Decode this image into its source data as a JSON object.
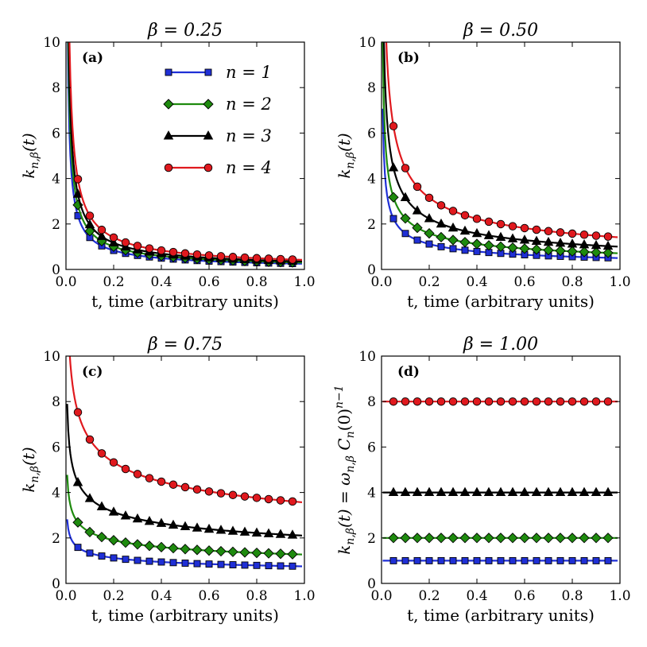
{
  "chart_data": [
    {
      "type": "line",
      "panel_label": "(a)",
      "title": "β = 0.25",
      "xlabel": "t,  time (arbitrary units)",
      "ylabel": "k_{n,β}(t)",
      "ylabel_parts": {
        "base": "k",
        "sub": "n,β",
        "arg": "(t)"
      },
      "xlim": [
        0.0,
        1.0
      ],
      "ylim": [
        0,
        10
      ],
      "xticks": [
        "0.0",
        "0.2",
        "0.4",
        "0.6",
        "0.8",
        "1.0"
      ],
      "yticks": [
        "0",
        "2",
        "4",
        "6",
        "8",
        "10"
      ],
      "beta": 0.25,
      "legend": [
        "n = 1",
        "n = 2",
        "n = 3",
        "n = 4"
      ],
      "marker_x": [
        0.05,
        0.1,
        0.15,
        0.2,
        0.25,
        0.3,
        0.35,
        0.4,
        0.45,
        0.5,
        0.55,
        0.6,
        0.65,
        0.7,
        0.75,
        0.8,
        0.85,
        0.9,
        0.95
      ],
      "series": [
        {
          "name": "n = 1",
          "color": "#1f2fd6",
          "marker": "square",
          "amp": 0.25
        },
        {
          "name": "n = 2",
          "color": "#1e8a0e",
          "marker": "diamond",
          "amp": 0.3
        },
        {
          "name": "n = 3",
          "color": "#000000",
          "marker": "triangle",
          "amp": 0.35
        },
        {
          "name": "n = 4",
          "color": "#e0191e",
          "marker": "circle",
          "amp": 0.42
        }
      ]
    },
    {
      "type": "line",
      "panel_label": "(b)",
      "title": "β = 0.50",
      "xlabel": "t,  time (arbitrary units)",
      "ylabel": "k_{n,β}(t)",
      "ylabel_parts": {
        "base": "k",
        "sub": "n,β",
        "arg": "(t)"
      },
      "xlim": [
        0.0,
        1.0
      ],
      "ylim": [
        0,
        10
      ],
      "xticks": [
        "0.0",
        "0.2",
        "0.4",
        "0.6",
        "0.8",
        "1.0"
      ],
      "yticks": [
        "0",
        "2",
        "4",
        "6",
        "8",
        "10"
      ],
      "beta": 0.5,
      "marker_x": [
        0.05,
        0.1,
        0.15,
        0.2,
        0.25,
        0.3,
        0.35,
        0.4,
        0.45,
        0.5,
        0.55,
        0.6,
        0.65,
        0.7,
        0.75,
        0.8,
        0.85,
        0.9,
        0.95
      ],
      "series": [
        {
          "name": "n = 1",
          "color": "#1f2fd6",
          "marker": "square",
          "amp": 0.5
        },
        {
          "name": "n = 2",
          "color": "#1e8a0e",
          "marker": "diamond",
          "amp": 0.71
        },
        {
          "name": "n = 3",
          "color": "#000000",
          "marker": "triangle",
          "amp": 1.0
        },
        {
          "name": "n = 4",
          "color": "#e0191e",
          "marker": "circle",
          "amp": 1.41
        }
      ]
    },
    {
      "type": "line",
      "panel_label": "(c)",
      "title": "β = 0.75",
      "xlabel": "t,  time (arbitrary units)",
      "ylabel": "k_{n,β}(t)",
      "ylabel_parts": {
        "base": "k",
        "sub": "n,β",
        "arg": "(t)"
      },
      "xlim": [
        0.0,
        1.0
      ],
      "ylim": [
        0,
        10
      ],
      "xticks": [
        "0.0",
        "0.2",
        "0.4",
        "0.6",
        "0.8",
        "1.0"
      ],
      "yticks": [
        "0",
        "2",
        "4",
        "6",
        "8",
        "10"
      ],
      "beta": 0.75,
      "marker_x": [
        0.05,
        0.1,
        0.15,
        0.2,
        0.25,
        0.3,
        0.35,
        0.4,
        0.45,
        0.5,
        0.55,
        0.6,
        0.65,
        0.7,
        0.75,
        0.8,
        0.85,
        0.9,
        0.95
      ],
      "series": [
        {
          "name": "n = 1",
          "color": "#1f2fd6",
          "marker": "square",
          "amp": 0.75
        },
        {
          "name": "n = 2",
          "color": "#1e8a0e",
          "marker": "diamond",
          "amp": 1.27
        },
        {
          "name": "n = 3",
          "color": "#000000",
          "marker": "triangle",
          "amp": 2.1
        },
        {
          "name": "n = 4",
          "color": "#e0191e",
          "marker": "circle",
          "amp": 3.56
        }
      ]
    },
    {
      "type": "line",
      "panel_label": "(d)",
      "title": "β = 1.00",
      "xlabel": "t,  time (arbitrary units)",
      "ylabel": "k_{n,β}(t) = ω_{n,β} C_n(0)^{n−1}",
      "ylabel_parts": {
        "base": "k",
        "sub": "n,β",
        "arg": "(t) = ω",
        "sub2": "n,β",
        "mid": " C",
        "sub3": "n",
        "tail": "(0)",
        "sup": "n−1"
      },
      "xlim": [
        0.0,
        1.0
      ],
      "ylim": [
        0,
        10
      ],
      "xticks": [
        "0.0",
        "0.2",
        "0.4",
        "0.6",
        "0.8",
        "1.0"
      ],
      "yticks": [
        "0",
        "2",
        "4",
        "6",
        "8",
        "10"
      ],
      "beta": 1.0,
      "marker_x": [
        0.05,
        0.1,
        0.15,
        0.2,
        0.25,
        0.3,
        0.35,
        0.4,
        0.45,
        0.5,
        0.55,
        0.6,
        0.65,
        0.7,
        0.75,
        0.8,
        0.85,
        0.9,
        0.95
      ],
      "series": [
        {
          "name": "n = 1",
          "color": "#1f2fd6",
          "marker": "square",
          "amp": 1.0
        },
        {
          "name": "n = 2",
          "color": "#1e8a0e",
          "marker": "diamond",
          "amp": 2.0
        },
        {
          "name": "n = 3",
          "color": "#000000",
          "marker": "triangle",
          "amp": 4.0
        },
        {
          "name": "n = 4",
          "color": "#e0191e",
          "marker": "circle",
          "amp": 8.0
        }
      ]
    }
  ]
}
